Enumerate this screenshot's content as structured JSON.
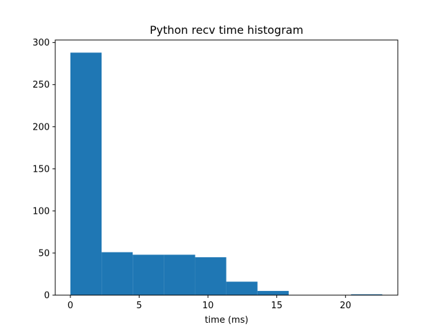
{
  "chart_data": {
    "type": "bar",
    "title": "Python recv time histogram",
    "xlabel": "time (ms)",
    "ylabel": "",
    "xlim": [
      -1.1,
      23.8
    ],
    "ylim": [
      0,
      303
    ],
    "grid": false,
    "color": "#1f77b4",
    "bins": [
      {
        "start": 0.0,
        "end": 2.27,
        "count": 288
      },
      {
        "start": 2.27,
        "end": 4.53,
        "count": 51
      },
      {
        "start": 4.53,
        "end": 6.8,
        "count": 48
      },
      {
        "start": 6.8,
        "end": 9.07,
        "count": 48
      },
      {
        "start": 9.07,
        "end": 11.33,
        "count": 45
      },
      {
        "start": 11.33,
        "end": 13.6,
        "count": 16
      },
      {
        "start": 13.6,
        "end": 15.87,
        "count": 5
      },
      {
        "start": 15.87,
        "end": 18.13,
        "count": 0
      },
      {
        "start": 18.13,
        "end": 20.4,
        "count": 0
      },
      {
        "start": 20.4,
        "end": 22.67,
        "count": 1
      }
    ],
    "xticks": [
      {
        "value": 0,
        "label": "0"
      },
      {
        "value": 5,
        "label": "5"
      },
      {
        "value": 10,
        "label": "10"
      },
      {
        "value": 15,
        "label": "15"
      },
      {
        "value": 20,
        "label": "20"
      }
    ],
    "yticks": [
      {
        "value": 0,
        "label": "0"
      },
      {
        "value": 50,
        "label": "50"
      },
      {
        "value": 100,
        "label": "100"
      },
      {
        "value": 150,
        "label": "150"
      },
      {
        "value": 200,
        "label": "200"
      },
      {
        "value": 250,
        "label": "250"
      },
      {
        "value": 300,
        "label": "300"
      }
    ]
  }
}
